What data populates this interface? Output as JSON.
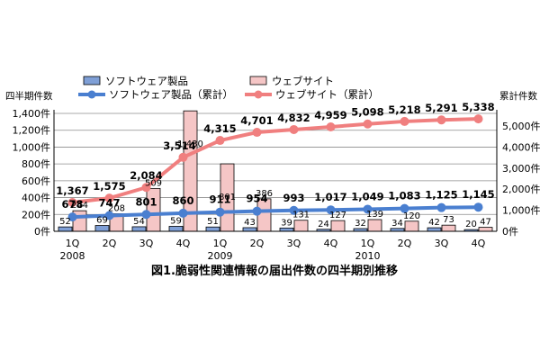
{
  "chart_data": {
    "type": "bar",
    "title": "図1.脆弱性関連情報の届出件数の四半期別推移",
    "left_axis_title": "四半期件数",
    "right_axis_title": "累計件数",
    "categories": [
      "1Q",
      "2Q",
      "3Q",
      "4Q",
      "1Q",
      "2Q",
      "3Q",
      "4Q",
      "1Q",
      "2Q",
      "3Q",
      "4Q"
    ],
    "years": [
      {
        "label": "2008",
        "start": 0
      },
      {
        "label": "2009",
        "start": 4
      },
      {
        "label": "2010",
        "start": 8
      }
    ],
    "left_ticks": [
      "0件",
      "200件",
      "400件",
      "600件",
      "800件",
      "1,000件",
      "1,200件",
      "1,400件"
    ],
    "right_ticks": [
      "0件",
      "1,000件",
      "2,000件",
      "3,000件",
      "4,000件",
      "5,000件"
    ],
    "ylim_left": [
      0,
      1400
    ],
    "ylim_right": [
      0,
      5600
    ],
    "bar_series": [
      {
        "name": "ソフトウェア製品",
        "values": [
          52,
          69,
          54,
          59,
          51,
          43,
          39,
          24,
          32,
          34,
          42,
          20
        ],
        "labels": [
          "52",
          "69",
          "54",
          "59",
          "51",
          "43",
          "39",
          "24",
          "32",
          "34",
          "42",
          "20"
        ],
        "color": "#7f9fd6"
      },
      {
        "name": "ウェブサイト",
        "values": [
          244,
          208,
          509,
          1430,
          801,
          386,
          131,
          127,
          139,
          120,
          73,
          47
        ],
        "labels": [
          "244",
          "208",
          "509",
          "1,430",
          "801",
          "386",
          "131",
          "127",
          "139",
          "120",
          "73",
          "47"
        ],
        "color": "#f5c6c6"
      }
    ],
    "line_series": [
      {
        "name": "ソフトウェア製品（累計）",
        "values": [
          678,
          747,
          801,
          860,
          911,
          954,
          993,
          1017,
          1049,
          1083,
          1125,
          1145
        ],
        "labels": [
          "678",
          "747",
          "801",
          "860",
          "911",
          "954",
          "993",
          "1,017",
          "1,049",
          "1,083",
          "1,125",
          "1,145"
        ],
        "color": "#4a7fd0"
      },
      {
        "name": "ウェブサイト（累計）",
        "values": [
          1367,
          1575,
          2084,
          3514,
          4315,
          4701,
          4832,
          4959,
          5098,
          5218,
          5291,
          5338
        ],
        "labels": [
          "1,367",
          "1,575",
          "2,084",
          "3,514",
          "4,315",
          "4,701",
          "4,832",
          "4,959",
          "5,098",
          "5,218",
          "5,291",
          "5,338"
        ],
        "color": "#f07f7f"
      }
    ],
    "grid": true,
    "legend_position": "top-left"
  }
}
